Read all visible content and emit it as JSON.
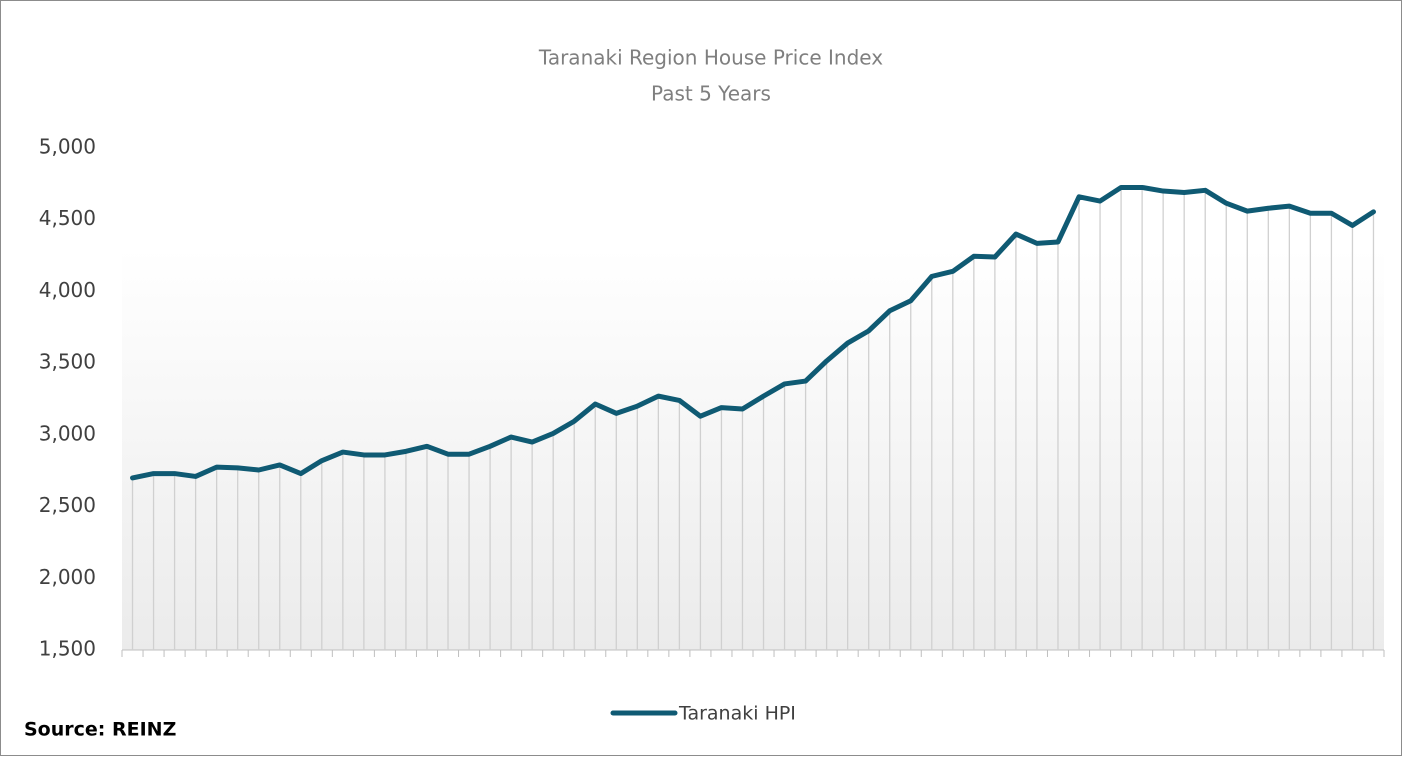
{
  "chart_data": {
    "type": "line",
    "title": "Taranaki Region House Price Index",
    "subtitle": "Past 5 Years",
    "annotation": "Source: REINZ",
    "categories": [
      null,
      null,
      null,
      null,
      null,
      null,
      null,
      null,
      null,
      null,
      null,
      null,
      null,
      null,
      null,
      null,
      null,
      null,
      null,
      null,
      null,
      null,
      null,
      null,
      null,
      null,
      null,
      null,
      null,
      null,
      null,
      null,
      null,
      null,
      null,
      null,
      null,
      null,
      null,
      null,
      null,
      null,
      null,
      null,
      null,
      null,
      null,
      null,
      null,
      null,
      null,
      null,
      null,
      null,
      null,
      null,
      null,
      null,
      null,
      null
    ],
    "series": [
      {
        "name": "Taranaki HPI",
        "color": "#0f5a73",
        "values": [
          2700,
          2730,
          2730,
          2710,
          2775,
          2770,
          2755,
          2790,
          2730,
          2820,
          2880,
          2860,
          2860,
          2885,
          2920,
          2865,
          2865,
          2920,
          2985,
          2950,
          3010,
          3095,
          3215,
          3150,
          3200,
          3270,
          3240,
          3130,
          3190,
          3180,
          3270,
          3355,
          3375,
          3515,
          3640,
          3725,
          3865,
          3935,
          4105,
          4140,
          4245,
          4240,
          4400,
          4335,
          4345,
          4660,
          4630,
          4725,
          4725,
          4700,
          4690,
          4705,
          4615,
          4560,
          4580,
          4595,
          4545,
          4545,
          4460,
          4555
        ]
      }
    ],
    "ylim": [
      1500,
      5000
    ],
    "yticks": [
      {
        "value": 1500,
        "label": "1,500"
      },
      {
        "value": 2000,
        "label": "2,000"
      },
      {
        "value": 2500,
        "label": "2,500"
      },
      {
        "value": 3000,
        "label": "3,000"
      },
      {
        "value": 3500,
        "label": "3,500"
      },
      {
        "value": 4000,
        "label": "4,000"
      },
      {
        "value": 4500,
        "label": "4,500"
      },
      {
        "value": 5000,
        "label": "5,000"
      }
    ],
    "drop_lines": true,
    "legend": "bottom"
  }
}
